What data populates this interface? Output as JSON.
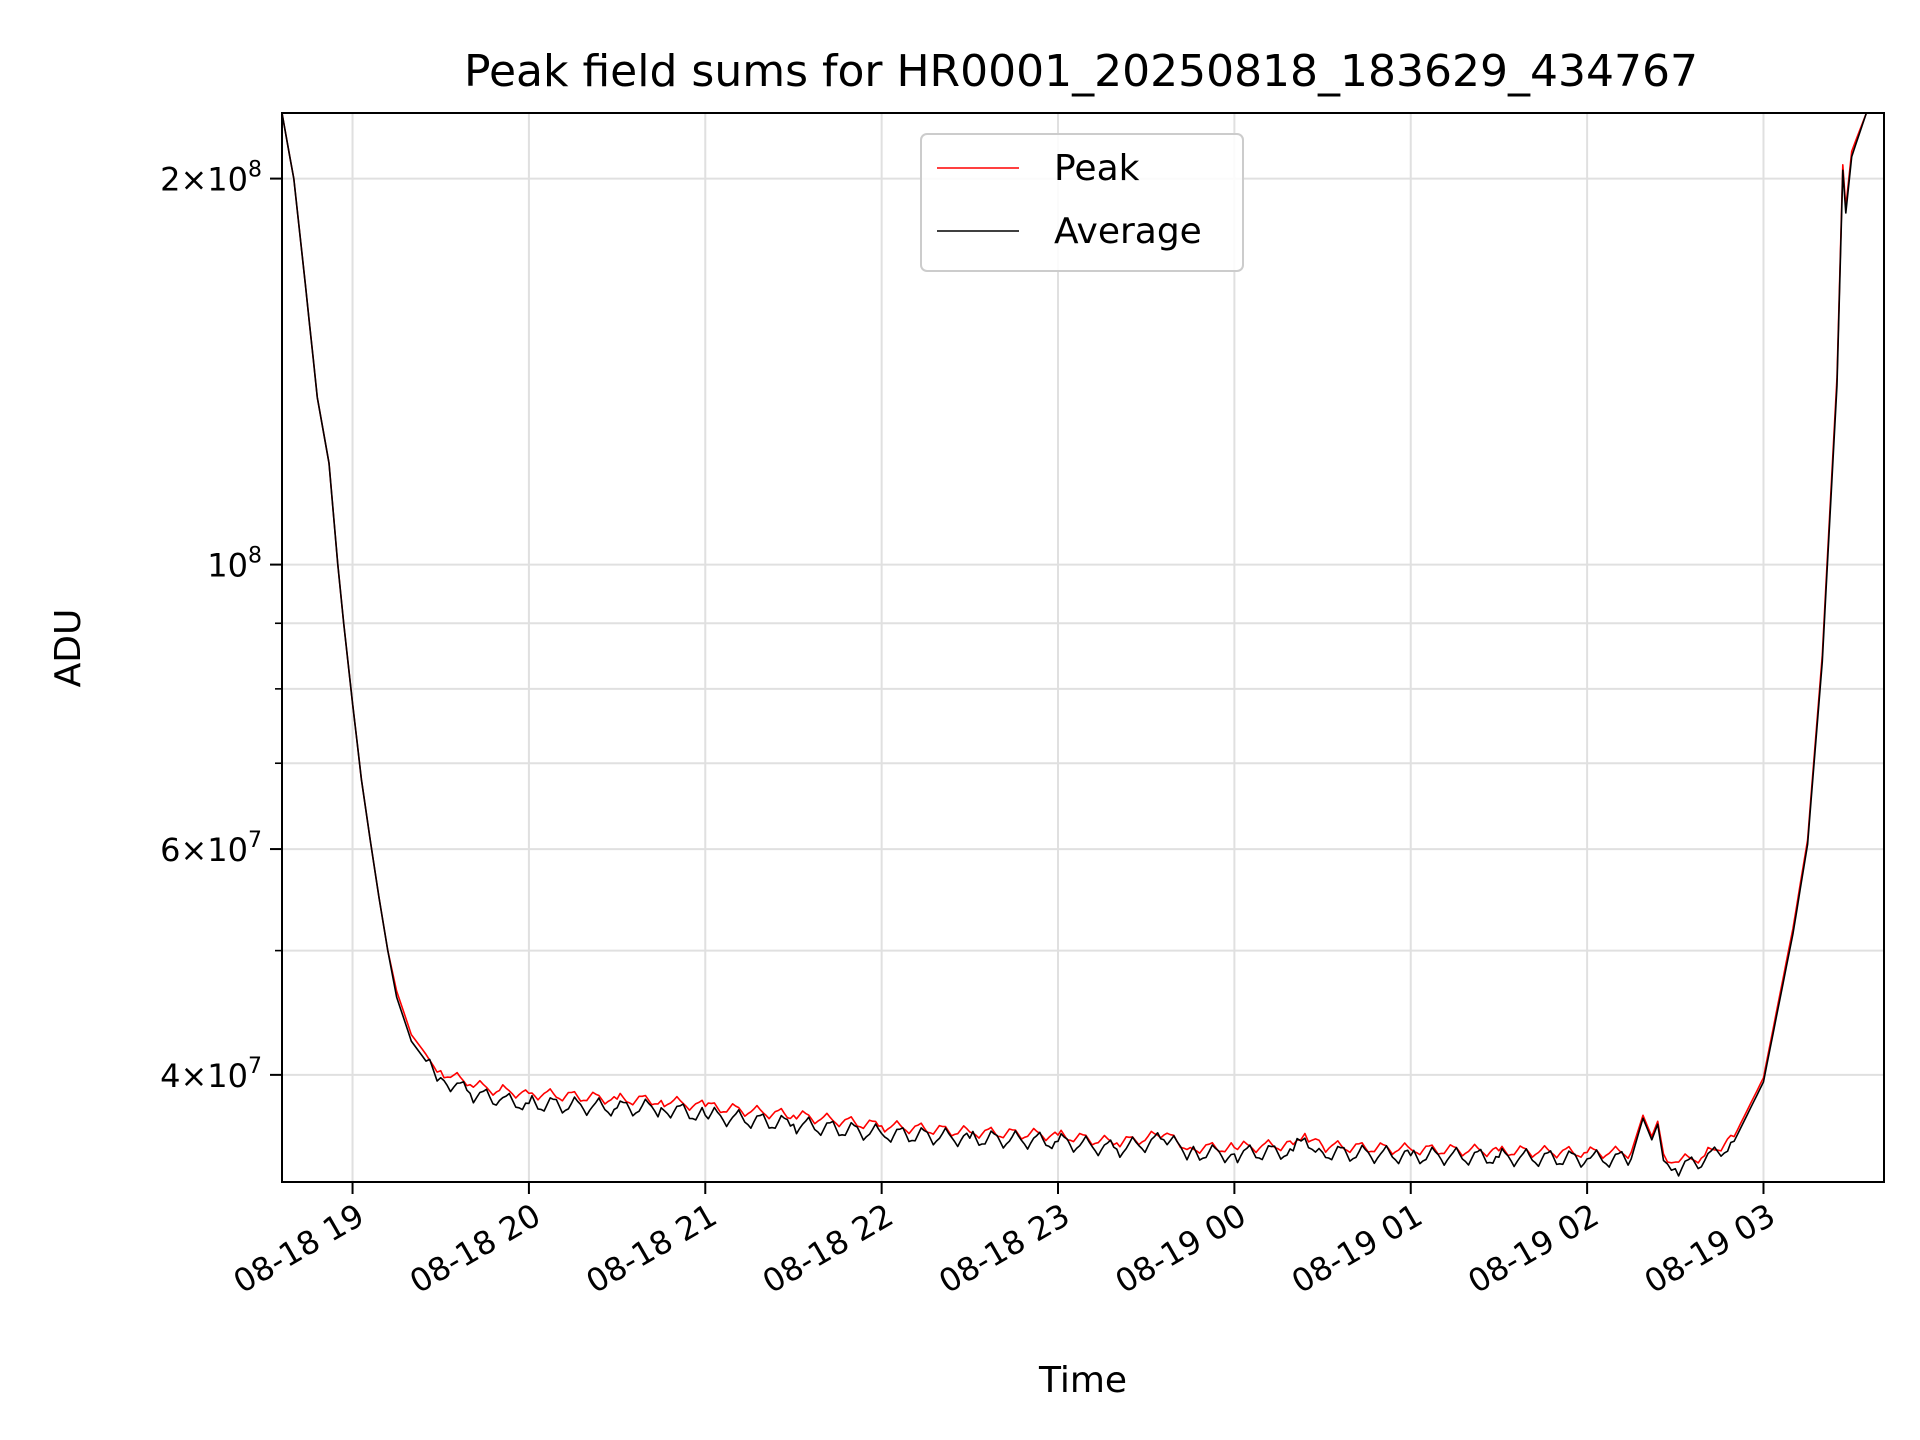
{
  "chart_data": {
    "type": "line",
    "title": "Peak field sums for HR0001_20250818_183629_434767",
    "xlabel": "Time",
    "ylabel": "ADU",
    "yscale": "log",
    "xlim": [
      "2025-08-18 18:36",
      "2025-08-19 03:41"
    ],
    "ylim": [
      33000000,
      225000000
    ],
    "grid": true,
    "legend_position": "top-center",
    "x_ticks": [
      {
        "value": "2025-08-18 19:00",
        "label": "08-18 19"
      },
      {
        "value": "2025-08-18 20:00",
        "label": "08-18 20"
      },
      {
        "value": "2025-08-18 21:00",
        "label": "08-18 21"
      },
      {
        "value": "2025-08-18 22:00",
        "label": "08-18 22"
      },
      {
        "value": "2025-08-18 23:00",
        "label": "08-18 23"
      },
      {
        "value": "2025-08-19 00:00",
        "label": "08-19 00"
      },
      {
        "value": "2025-08-19 01:00",
        "label": "08-19 01"
      },
      {
        "value": "2025-08-19 02:00",
        "label": "08-19 02"
      },
      {
        "value": "2025-08-19 03:00",
        "label": "08-19 03"
      }
    ],
    "y_major_ticks": [
      {
        "value": 40000000,
        "base": "4",
        "exp": "7"
      },
      {
        "value": 60000000,
        "base": "6",
        "exp": "7"
      },
      {
        "value": 100000000,
        "base": "",
        "exp": "8"
      },
      {
        "value": 200000000,
        "base": "2",
        "exp": "8"
      }
    ],
    "y_minor_ticks": [
      50000000,
      70000000,
      80000000,
      90000000
    ],
    "x": [
      "2025-08-18 18:36",
      "2025-08-18 18:40",
      "2025-08-18 18:44",
      "2025-08-18 18:48",
      "2025-08-18 18:52",
      "2025-08-18 18:55",
      "2025-08-18 18:57",
      "2025-08-18 19:00",
      "2025-08-18 19:03",
      "2025-08-18 19:06",
      "2025-08-18 19:09",
      "2025-08-18 19:12",
      "2025-08-18 19:15",
      "2025-08-18 19:20",
      "2025-08-18 19:25",
      "2025-08-18 19:30",
      "2025-08-18 19:40",
      "2025-08-18 19:50",
      "2025-08-18 20:00",
      "2025-08-18 20:30",
      "2025-08-18 20:45",
      "2025-08-18 21:00",
      "2025-08-18 21:30",
      "2025-08-18 22:00",
      "2025-08-18 22:30",
      "2025-08-18 23:00",
      "2025-08-18 23:20",
      "2025-08-18 23:36",
      "2025-08-18 23:45",
      "2025-08-19 00:00",
      "2025-08-19 00:20",
      "2025-08-19 00:24",
      "2025-08-19 00:30",
      "2025-08-19 01:00",
      "2025-08-19 01:30",
      "2025-08-19 02:00",
      "2025-08-19 02:15",
      "2025-08-19 02:19",
      "2025-08-19 02:22",
      "2025-08-19 02:24",
      "2025-08-19 02:26",
      "2025-08-19 02:30",
      "2025-08-19 02:40",
      "2025-08-19 02:50",
      "2025-08-19 03:00",
      "2025-08-19 03:10",
      "2025-08-19 03:15",
      "2025-08-19 03:20",
      "2025-08-19 03:25",
      "2025-08-19 03:27",
      "2025-08-19 03:28",
      "2025-08-19 03:30",
      "2025-08-19 03:35",
      "2025-08-19 03:41"
    ],
    "series": [
      {
        "name": "Peak",
        "color": "#ff0000",
        "values": [
          225000000,
          200000000,
          165000000,
          135000000,
          120000000,
          100000000,
          90000000,
          78000000,
          68000000,
          61000000,
          55000000,
          50000000,
          46500000,
          43000000,
          41500000,
          40300000,
          39300000,
          38900000,
          38700000,
          38300000,
          38200000,
          37800000,
          37200000,
          36500000,
          36100000,
          35900000,
          35400000,
          35900000,
          35100000,
          35100000,
          35300000,
          36000000,
          35200000,
          35000000,
          34900000,
          34800000,
          34800000,
          37200000,
          35800000,
          36800000,
          34700000,
          34200000,
          34600000,
          35800000,
          39800000,
          52000000,
          61000000,
          85000000,
          140000000,
          205000000,
          190000000,
          210000000,
          225000000,
          225000000
        ]
      },
      {
        "name": "Average",
        "color": "#000000",
        "values": [
          225000000,
          200000000,
          165000000,
          135000000,
          120000000,
          100000000,
          90000000,
          78000000,
          68000000,
          61000000,
          55000000,
          50000000,
          46000000,
          42500000,
          41000000,
          39800000,
          38700000,
          38200000,
          38000000,
          37700000,
          37700000,
          37200000,
          36600000,
          36000000,
          35700000,
          35500000,
          35000000,
          35600000,
          34800000,
          34700000,
          34900000,
          35700000,
          34800000,
          34600000,
          34500000,
          34400000,
          34400000,
          37000000,
          35600000,
          36600000,
          34300000,
          33800000,
          34300000,
          35500000,
          39500000,
          51500000,
          60500000,
          84000000,
          138000000,
          203000000,
          188000000,
          208000000,
          225000000,
          225000000
        ]
      }
    ]
  }
}
